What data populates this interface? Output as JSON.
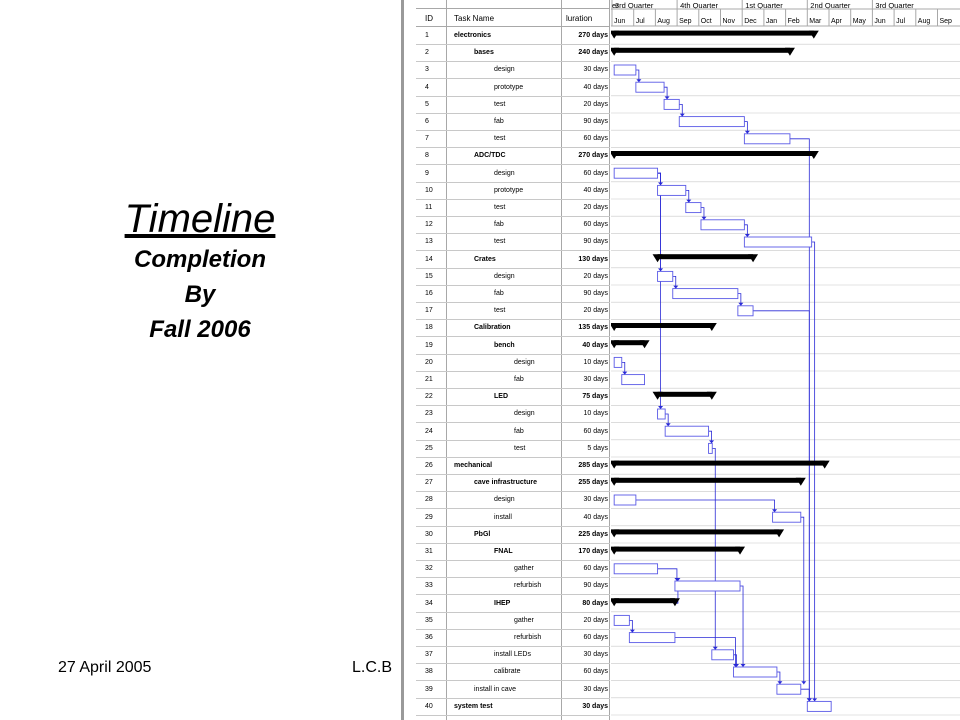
{
  "slide": {
    "title": "Timeline",
    "subtitle_lines": [
      "Completion",
      "By",
      "Fall 2006"
    ],
    "date": "27 April 2005",
    "author": "L.C.B"
  },
  "gantt": {
    "headers": {
      "id": "ID",
      "task": "Task Name",
      "duration": "luration"
    },
    "quarters": [
      "er",
      "3rd Quarter",
      "4th Quarter",
      "1st Quarter",
      "2nd Quarter",
      "3rd Quarter"
    ],
    "months": [
      "Jun",
      "Jul",
      "Aug",
      "Sep",
      "Oct",
      "Nov",
      "Dec",
      "Jan",
      "Feb",
      "Mar",
      "Apr",
      "May",
      "Jun",
      "Jul",
      "Aug",
      "Sep"
    ],
    "tasks": [
      {
        "id": "1",
        "name": "electronics",
        "dur": "270 days",
        "level": 0,
        "summary": true,
        "start": 0.1,
        "end": 9.3
      },
      {
        "id": "2",
        "name": "bases",
        "dur": "240 days",
        "level": 1,
        "summary": true,
        "start": 0.1,
        "end": 8.2
      },
      {
        "id": "3",
        "name": "design",
        "dur": "30 days",
        "level": 2,
        "start": 0.1,
        "end": 1.1
      },
      {
        "id": "4",
        "name": "prototype",
        "dur": "40 days",
        "level": 2,
        "start": 1.1,
        "end": 2.4
      },
      {
        "id": "5",
        "name": "test",
        "dur": "20 days",
        "level": 2,
        "start": 2.4,
        "end": 3.1
      },
      {
        "id": "6",
        "name": "fab",
        "dur": "90 days",
        "level": 2,
        "start": 3.1,
        "end": 6.1
      },
      {
        "id": "7",
        "name": "test",
        "dur": "60 days",
        "level": 2,
        "start": 6.1,
        "end": 8.2
      },
      {
        "id": "8",
        "name": "ADC/TDC",
        "dur": "270 days",
        "level": 1,
        "summary": true,
        "start": 0.1,
        "end": 9.3
      },
      {
        "id": "9",
        "name": "design",
        "dur": "60 days",
        "level": 2,
        "start": 0.1,
        "end": 2.1
      },
      {
        "id": "10",
        "name": "prototype",
        "dur": "40 days",
        "level": 2,
        "start": 2.1,
        "end": 3.4
      },
      {
        "id": "11",
        "name": "test",
        "dur": "20 days",
        "level": 2,
        "start": 3.4,
        "end": 4.1
      },
      {
        "id": "12",
        "name": "fab",
        "dur": "60 days",
        "level": 2,
        "start": 4.1,
        "end": 6.1
      },
      {
        "id": "13",
        "name": "test",
        "dur": "90 days",
        "level": 2,
        "start": 6.1,
        "end": 9.2
      },
      {
        "id": "14",
        "name": "Crates",
        "dur": "130 days",
        "level": 1,
        "summary": true,
        "start": 2.1,
        "end": 6.5
      },
      {
        "id": "15",
        "name": "design",
        "dur": "20 days",
        "level": 2,
        "start": 2.1,
        "end": 2.8
      },
      {
        "id": "16",
        "name": "fab",
        "dur": "90 days",
        "level": 2,
        "start": 2.8,
        "end": 5.8
      },
      {
        "id": "17",
        "name": "test",
        "dur": "20 days",
        "level": 2,
        "start": 5.8,
        "end": 6.5
      },
      {
        "id": "18",
        "name": "Calibration",
        "dur": "135 days",
        "level": 1,
        "summary": true,
        "start": 0.1,
        "end": 4.6
      },
      {
        "id": "19",
        "name": "bench",
        "dur": "40 days",
        "level": 2,
        "summary": true,
        "start": 0.1,
        "end": 1.5
      },
      {
        "id": "20",
        "name": "design",
        "dur": "10 days",
        "level": 3,
        "start": 0.1,
        "end": 0.45
      },
      {
        "id": "21",
        "name": "fab",
        "dur": "30 days",
        "level": 3,
        "start": 0.45,
        "end": 1.5
      },
      {
        "id": "22",
        "name": "LED",
        "dur": "75 days",
        "level": 2,
        "summary": true,
        "start": 2.1,
        "end": 4.6
      },
      {
        "id": "23",
        "name": "design",
        "dur": "10 days",
        "level": 3,
        "start": 2.1,
        "end": 2.45
      },
      {
        "id": "24",
        "name": "fab",
        "dur": "60 days",
        "level": 3,
        "start": 2.45,
        "end": 4.45
      },
      {
        "id": "25",
        "name": "test",
        "dur": "5 days",
        "level": 3,
        "start": 4.45,
        "end": 4.62
      },
      {
        "id": "26",
        "name": "mechanical",
        "dur": "285 days",
        "level": 0,
        "summary": true,
        "start": 0.1,
        "end": 9.8
      },
      {
        "id": "27",
        "name": "cave infrastructure",
        "dur": "255 days",
        "level": 1,
        "summary": true,
        "start": 0.1,
        "end": 8.7
      },
      {
        "id": "28",
        "name": "design",
        "dur": "30 days",
        "level": 2,
        "start": 0.1,
        "end": 1.1
      },
      {
        "id": "29",
        "name": "install",
        "dur": "40 days",
        "level": 2,
        "start": 7.4,
        "end": 8.7
      },
      {
        "id": "30",
        "name": "PbGl",
        "dur": "225 days",
        "level": 1,
        "summary": true,
        "start": 0.1,
        "end": 7.7
      },
      {
        "id": "31",
        "name": "FNAL",
        "dur": "170 days",
        "level": 2,
        "summary": true,
        "start": 0.1,
        "end": 5.9
      },
      {
        "id": "32",
        "name": "gather",
        "dur": "60 days",
        "level": 3,
        "start": 0.1,
        "end": 2.1
      },
      {
        "id": "33",
        "name": "refurbish",
        "dur": "90 days",
        "level": 3,
        "start": 2.9,
        "end": 5.9
      },
      {
        "id": "34",
        "name": "IHEP",
        "dur": "80 days",
        "level": 2,
        "summary": true,
        "start": 0.1,
        "end": 2.9
      },
      {
        "id": "35",
        "name": "gather",
        "dur": "20 days",
        "level": 3,
        "start": 0.1,
        "end": 0.8
      },
      {
        "id": "36",
        "name": "refurbish",
        "dur": "60 days",
        "level": 3,
        "start": 0.8,
        "end": 2.9
      },
      {
        "id": "37",
        "name": "install LEDs",
        "dur": "30 days",
        "level": 2,
        "start": 4.6,
        "end": 5.6
      },
      {
        "id": "38",
        "name": "calibrate",
        "dur": "60 days",
        "level": 2,
        "start": 5.6,
        "end": 7.6
      },
      {
        "id": "39",
        "name": "install in cave",
        "dur": "30 days",
        "level": 1,
        "start": 7.6,
        "end": 8.7
      },
      {
        "id": "40",
        "name": "system test",
        "dur": "30 days",
        "level": 0,
        "start": 9.0,
        "end": 10.1
      }
    ],
    "links": [
      [
        3,
        4
      ],
      [
        4,
        5
      ],
      [
        5,
        6
      ],
      [
        6,
        7
      ],
      [
        9,
        10
      ],
      [
        10,
        11
      ],
      [
        11,
        12
      ],
      [
        12,
        13
      ],
      [
        9,
        15
      ],
      [
        15,
        16
      ],
      [
        16,
        17
      ],
      [
        20,
        21
      ],
      [
        9,
        23
      ],
      [
        23,
        24
      ],
      [
        24,
        25
      ],
      [
        25,
        37
      ],
      [
        37,
        38
      ],
      [
        38,
        39
      ],
      [
        28,
        29
      ],
      [
        29,
        39
      ],
      [
        32,
        33
      ],
      [
        34,
        33
      ],
      [
        35,
        36
      ],
      [
        36,
        38
      ],
      [
        33,
        38
      ],
      [
        39,
        40
      ],
      [
        13,
        40
      ],
      [
        7,
        40
      ],
      [
        17,
        40
      ]
    ],
    "colors": {
      "task_bar": "#5a5ae6",
      "link": "#2a2ad6",
      "summary": "#000000",
      "grid": "#c8c8c8"
    }
  }
}
